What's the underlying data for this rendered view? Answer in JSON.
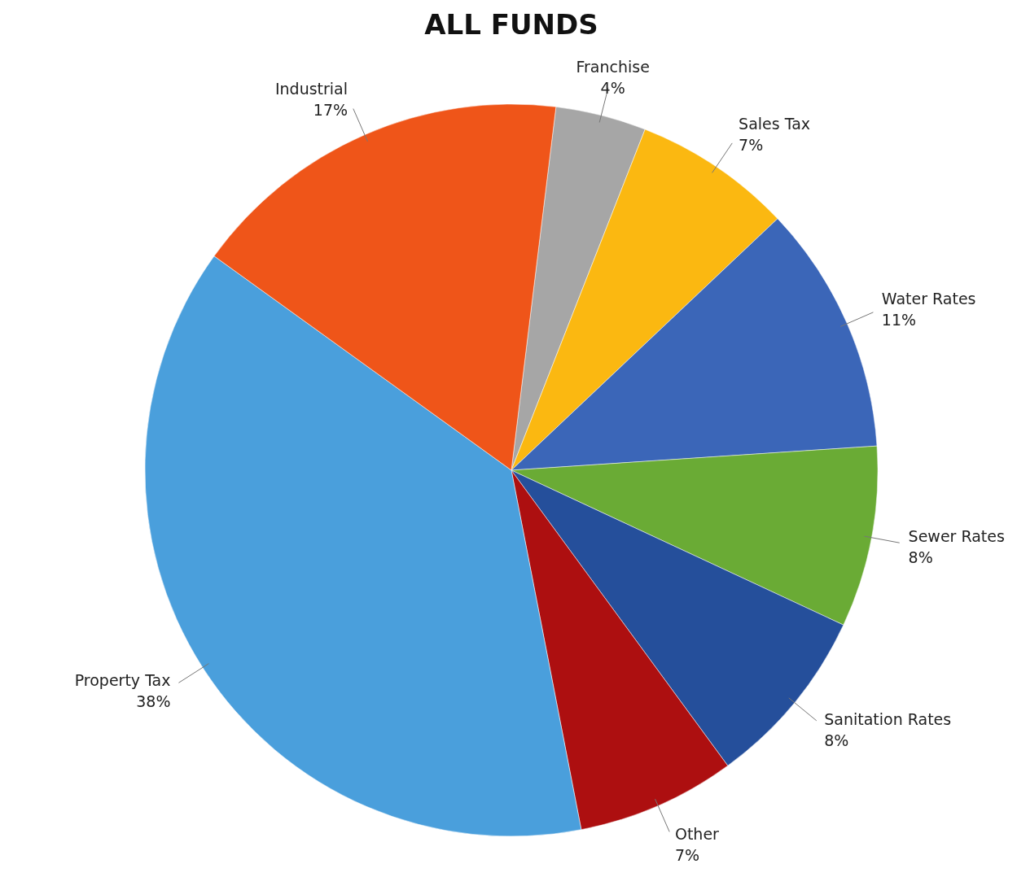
{
  "chart_data": {
    "type": "pie",
    "title": "ALL FUNDS",
    "categories": [
      "Franchise",
      "Sales Tax",
      "Water Rates",
      "Sewer Rates",
      "Sanitation Rates",
      "Other",
      "Property Tax",
      "Industrial"
    ],
    "values": [
      4,
      7,
      11,
      8,
      8,
      7,
      38,
      17
    ],
    "colors": [
      "#a6a6a6",
      "#fbb811",
      "#3b66b8",
      "#6aab35",
      "#254f9b",
      "#ad0f10",
      "#4a9fdc",
      "#ef5519"
    ],
    "value_labels": [
      "4%",
      "7%",
      "11%",
      "8%",
      "8%",
      "7%",
      "38%",
      "17%"
    ]
  }
}
